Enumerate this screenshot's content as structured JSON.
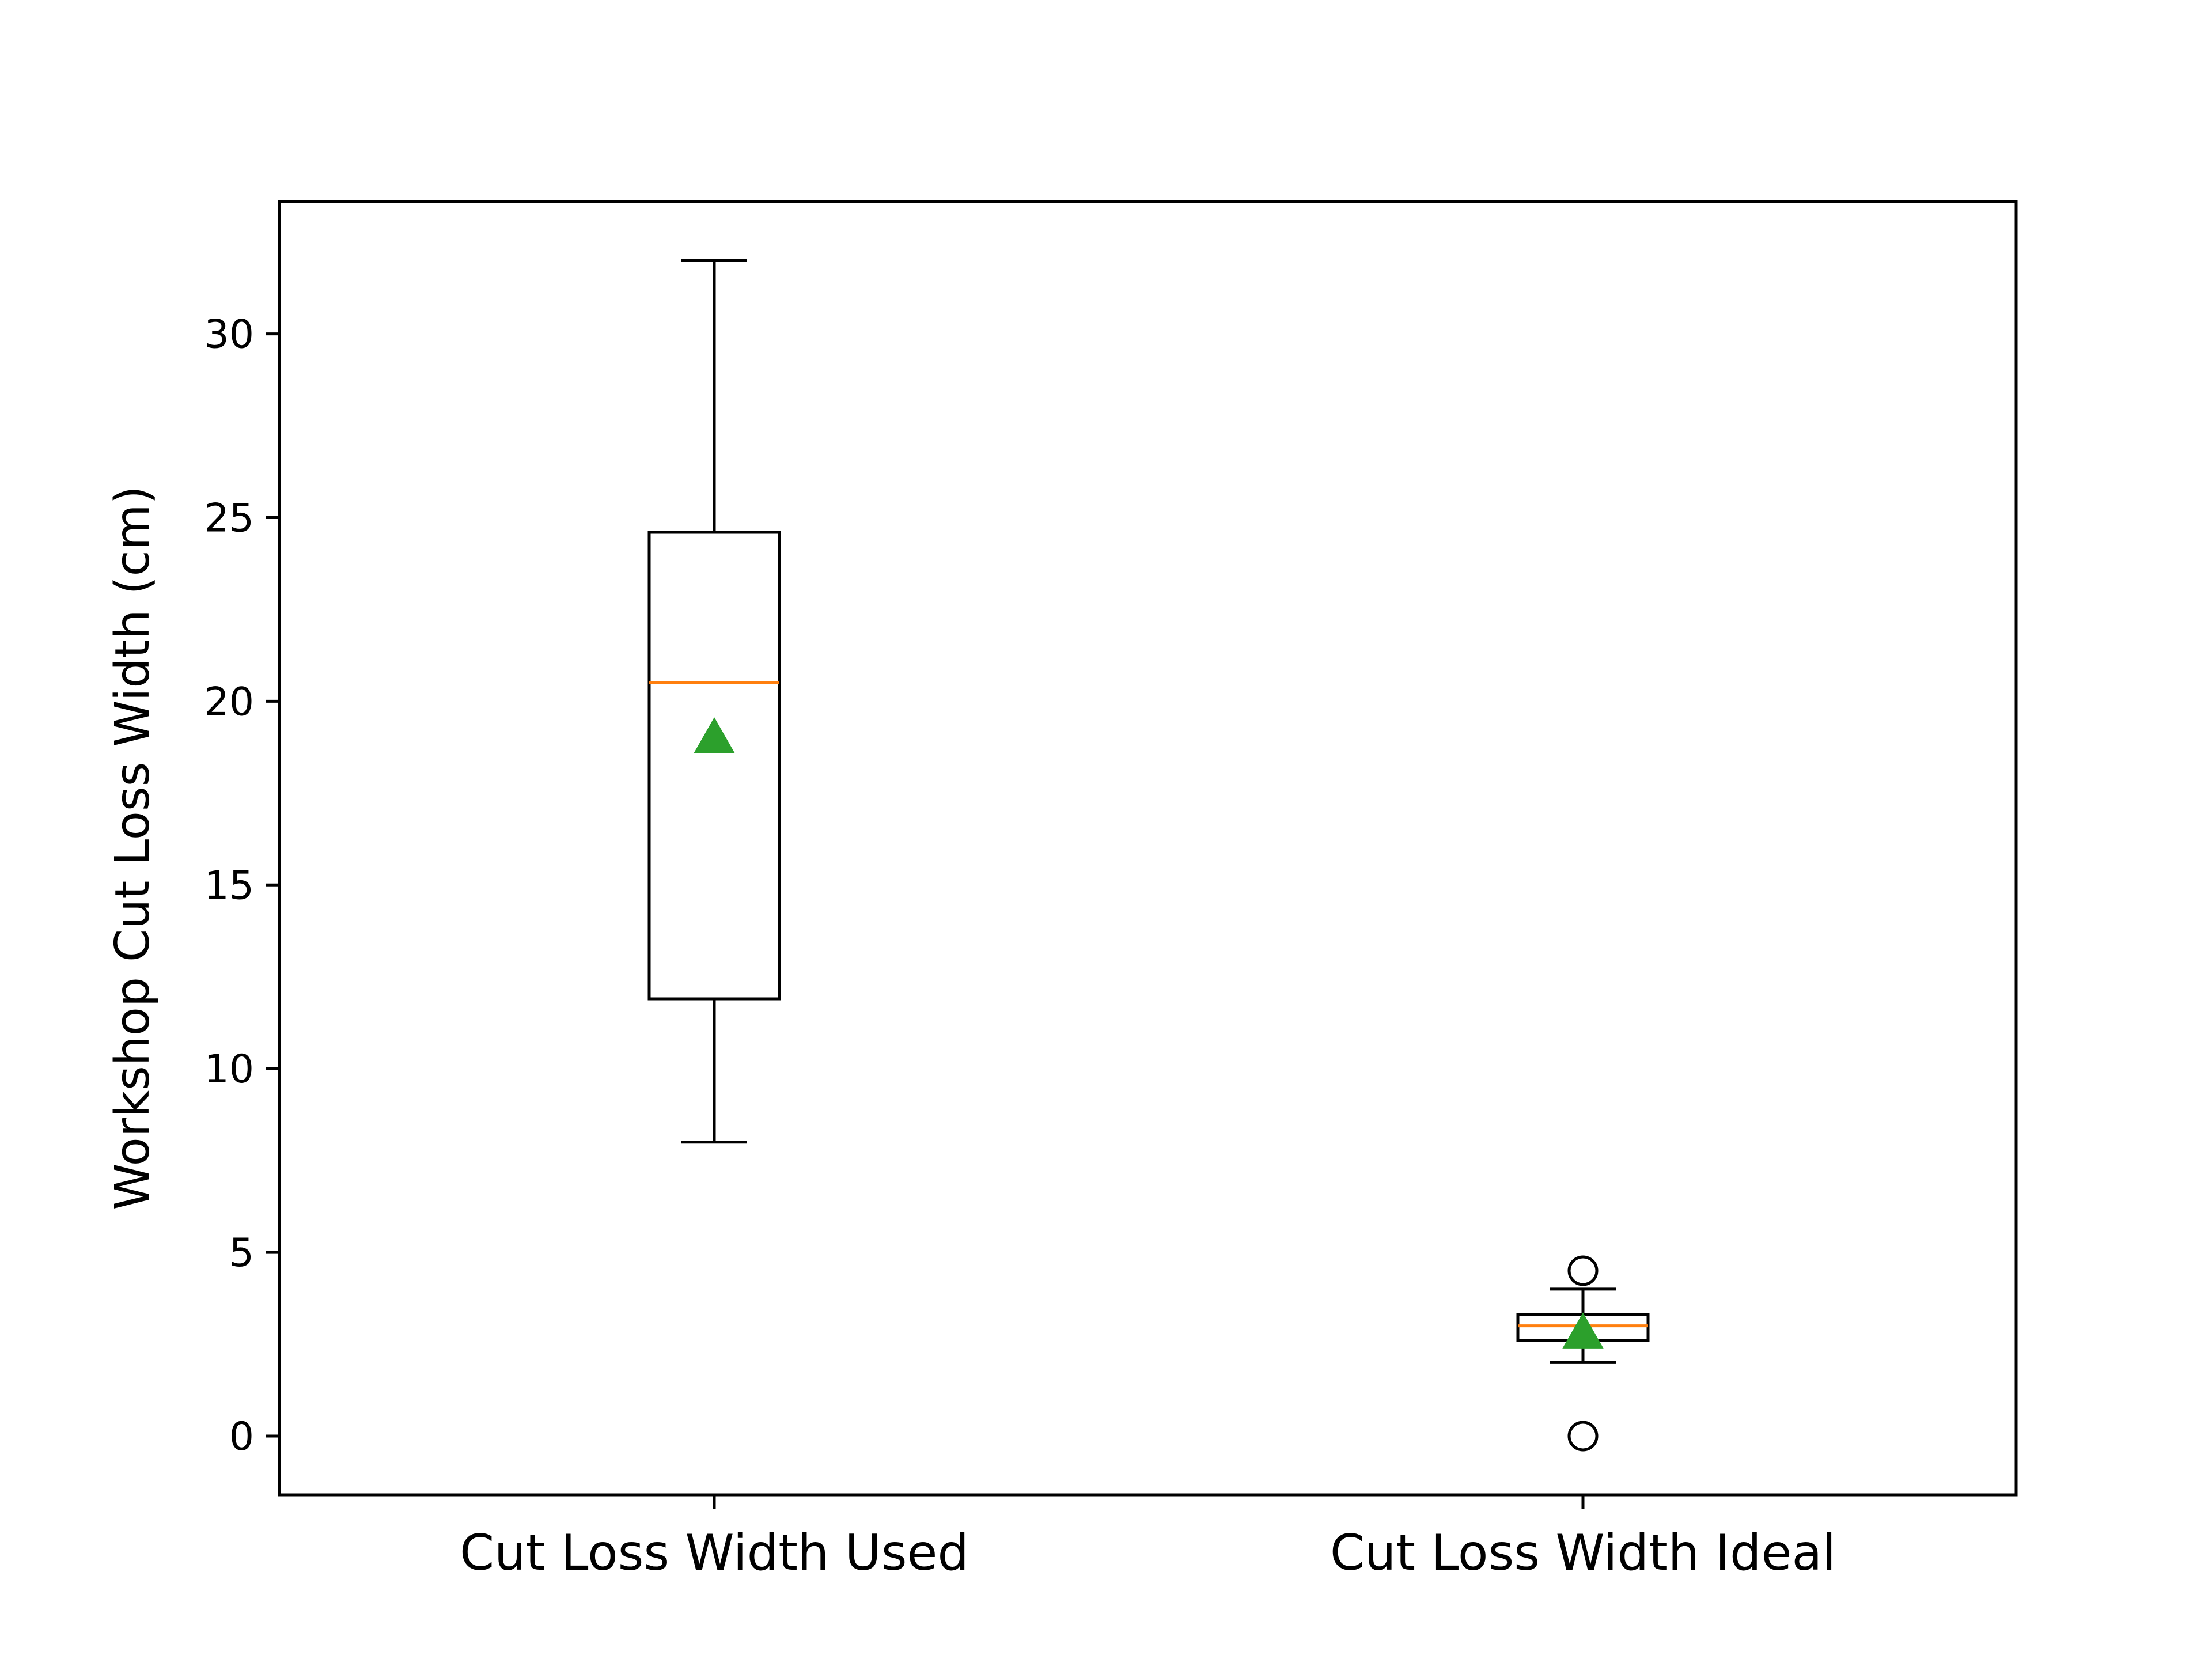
{
  "chart_data": {
    "type": "box",
    "title": "",
    "xlabel": "",
    "ylabel": "Workshop Cut Loss Width (cm)",
    "ylim": [
      -1.6,
      33.6
    ],
    "yticks": [
      0,
      5,
      10,
      15,
      20,
      25,
      30
    ],
    "grid": false,
    "categories": [
      "Cut Loss Width Used",
      "Cut Loss Width Ideal"
    ],
    "boxes": [
      {
        "name": "Cut Loss Width Used",
        "whisker_low": 8.0,
        "q1": 11.9,
        "median": 20.5,
        "q3": 24.6,
        "whisker_high": 32.0,
        "mean": 19.0,
        "outliers": []
      },
      {
        "name": "Cut Loss Width Ideal",
        "whisker_low": 2.0,
        "q1": 2.6,
        "median": 3.0,
        "q3": 3.3,
        "whisker_high": 4.0,
        "mean": 2.8,
        "outliers": [
          4.5,
          0.0
        ]
      }
    ],
    "colors": {
      "box": "#000000",
      "median": "#ff7f0e",
      "mean": "#2ca02c",
      "outlier": "#000000"
    }
  }
}
